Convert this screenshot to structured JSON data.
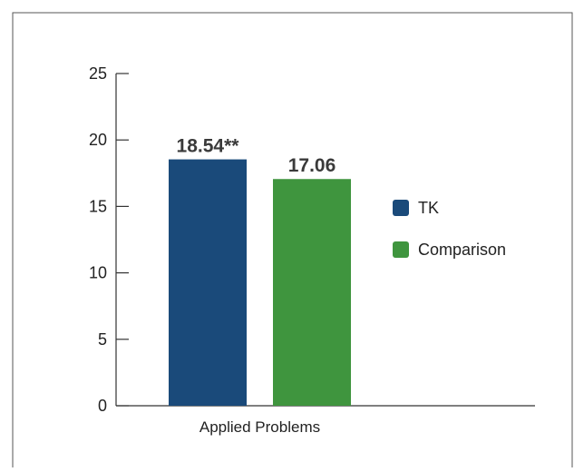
{
  "chart_data": {
    "type": "bar",
    "title": "",
    "xlabel": "",
    "ylabel": "",
    "categories": [
      "Applied Problems"
    ],
    "series": [
      {
        "name": "TK",
        "values": [
          18.54
        ],
        "data_label": "18.54**",
        "color": "#1a4a7a"
      },
      {
        "name": "Comparison",
        "values": [
          17.06
        ],
        "data_label": "17.06",
        "color": "#3f953e"
      }
    ],
    "ylim": [
      0,
      25
    ],
    "yticks": [
      "0",
      "5",
      "10",
      "15",
      "20",
      "25"
    ],
    "grid": false,
    "legend": "right"
  }
}
